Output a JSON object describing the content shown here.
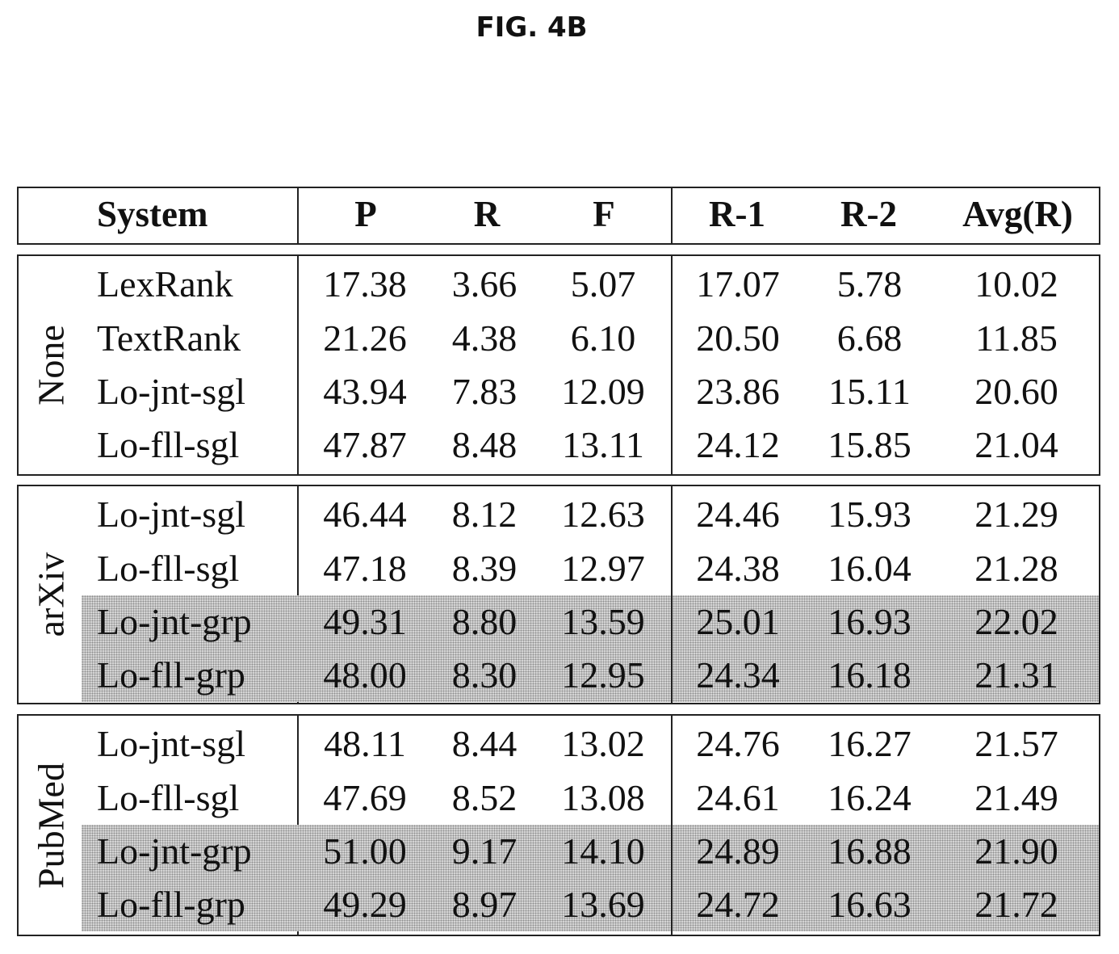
{
  "figure_title": "FIG. 4B",
  "header": {
    "system": "System",
    "columns": [
      "P",
      "R",
      "F",
      "R-1",
      "R-2",
      "Avg(R)"
    ]
  },
  "groups": [
    {
      "label": "None",
      "rows": [
        {
          "system": "LexRank",
          "values": [
            "17.38",
            "3.66",
            "5.07",
            "17.07",
            "5.78",
            "10.02"
          ],
          "shaded": false
        },
        {
          "system": "TextRank",
          "values": [
            "21.26",
            "4.38",
            "6.10",
            "20.50",
            "6.68",
            "11.85"
          ],
          "shaded": false
        },
        {
          "system": "Lo-jnt-sgl",
          "values": [
            "43.94",
            "7.83",
            "12.09",
            "23.86",
            "15.11",
            "20.60"
          ],
          "shaded": false
        },
        {
          "system": "Lo-fll-sgl",
          "values": [
            "47.87",
            "8.48",
            "13.11",
            "24.12",
            "15.85",
            "21.04"
          ],
          "shaded": false
        }
      ]
    },
    {
      "label": "arXiv",
      "rows": [
        {
          "system": "Lo-jnt-sgl",
          "values": [
            "46.44",
            "8.12",
            "12.63",
            "24.46",
            "15.93",
            "21.29"
          ],
          "shaded": false
        },
        {
          "system": "Lo-fll-sgl",
          "values": [
            "47.18",
            "8.39",
            "12.97",
            "24.38",
            "16.04",
            "21.28"
          ],
          "shaded": false
        },
        {
          "system": "Lo-jnt-grp",
          "values": [
            "49.31",
            "8.80",
            "13.59",
            "25.01",
            "16.93",
            "22.02"
          ],
          "shaded": true
        },
        {
          "system": "Lo-fll-grp",
          "values": [
            "48.00",
            "8.30",
            "12.95",
            "24.34",
            "16.18",
            "21.31"
          ],
          "shaded": true
        }
      ]
    },
    {
      "label": "PubMed",
      "rows": [
        {
          "system": "Lo-jnt-sgl",
          "values": [
            "48.11",
            "8.44",
            "13.02",
            "24.76",
            "16.27",
            "21.57"
          ],
          "shaded": false
        },
        {
          "system": "Lo-fll-sgl",
          "values": [
            "47.69",
            "8.52",
            "13.08",
            "24.61",
            "16.24",
            "21.49"
          ],
          "shaded": false
        },
        {
          "system": "Lo-jnt-grp",
          "values": [
            "51.00",
            "9.17",
            "14.10",
            "24.89",
            "16.88",
            "21.90"
          ],
          "shaded": true
        },
        {
          "system": "Lo-fll-grp",
          "values": [
            "49.29",
            "8.97",
            "13.69",
            "24.72",
            "16.63",
            "21.72"
          ],
          "shaded": true
        }
      ]
    }
  ]
}
